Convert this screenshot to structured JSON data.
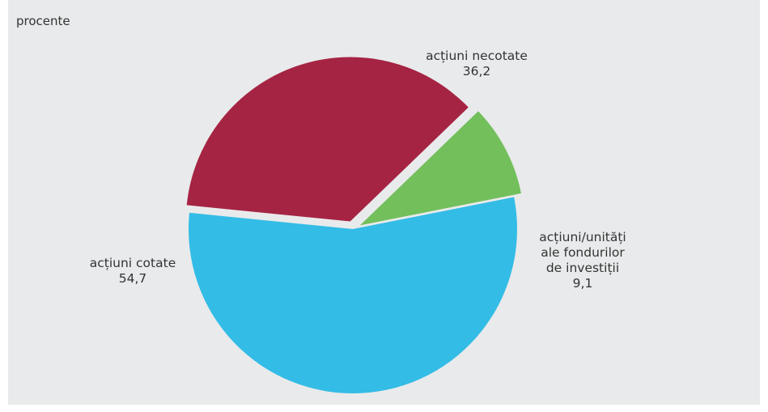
{
  "unit_label": "procente",
  "chart_data": {
    "type": "pie",
    "title": "",
    "unit": "procente",
    "slices": [
      {
        "name": "acțiuni necotate",
        "value": 36.2,
        "value_label": "36,2",
        "label_lines": [
          "acțiuni necotate"
        ],
        "color": "#a52444"
      },
      {
        "name": "acțiuni/unități ale fondurilor de investiții",
        "value": 9.1,
        "value_label": "9,1",
        "label_lines": [
          "acțiuni/unități",
          "ale fondurilor",
          "de investiții"
        ],
        "color": "#72bf5b"
      },
      {
        "name": "acțiuni cotate",
        "value": 54.7,
        "value_label": "54,7",
        "label_lines": [
          "acțiuni cotate"
        ],
        "color": "#33bce6"
      }
    ]
  }
}
